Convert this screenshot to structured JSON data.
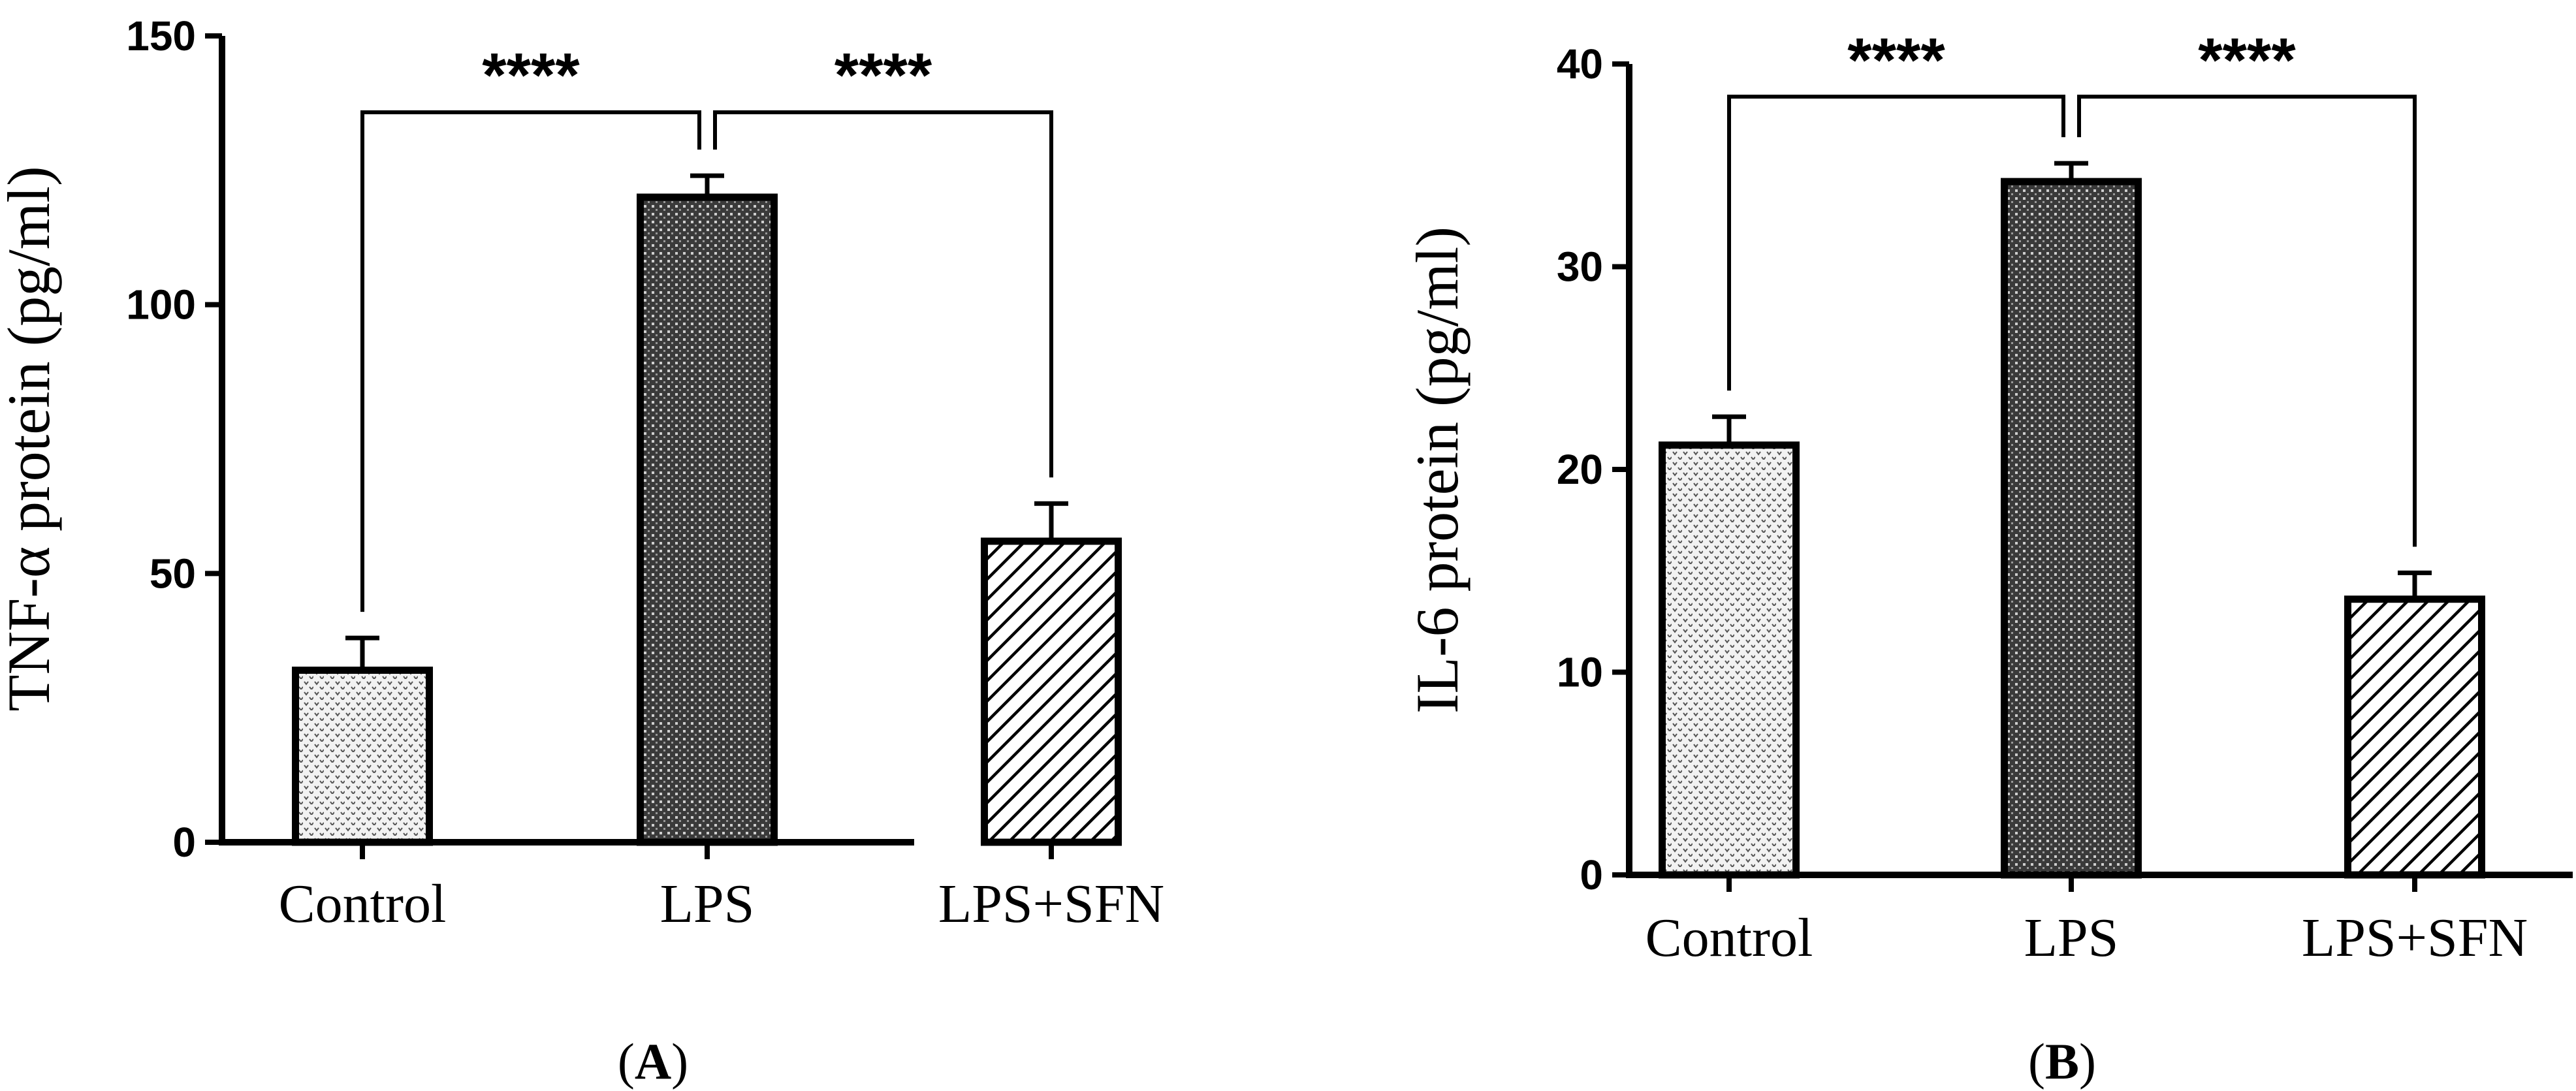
{
  "colors": {
    "ink": "#000000",
    "background": "#ffffff"
  },
  "panels": [
    {
      "label": "A"
    },
    {
      "label": "B"
    }
  ],
  "chart_data": [
    {
      "type": "bar",
      "panel": "A",
      "ylabel": "TNF-α protein (pg/ml)",
      "xlabel": "",
      "ylim": [
        0,
        150
      ],
      "yticks": [
        0,
        50,
        100,
        150
      ],
      "ytick_labels": [
        "0",
        "50",
        "100",
        "150"
      ],
      "categories": [
        "Control",
        "LPS",
        "LPS+SFN"
      ],
      "values": [
        32,
        120,
        56
      ],
      "errors": [
        6,
        4,
        7
      ],
      "patterns": [
        "dots",
        "crosshatch",
        "diagonal-stripes"
      ],
      "significance": [
        {
          "between": [
            "Control",
            "LPS"
          ],
          "text": "****"
        },
        {
          "between": [
            "LPS",
            "LPS+SFN"
          ],
          "text": "****"
        }
      ],
      "grid": false
    },
    {
      "type": "bar",
      "panel": "B",
      "ylabel": "IL-6 protein (pg/ml)",
      "xlabel": "",
      "ylim": [
        0,
        40
      ],
      "yticks": [
        0,
        10,
        20,
        30,
        40
      ],
      "ytick_labels": [
        "0",
        "10",
        "20",
        "30",
        "40"
      ],
      "categories": [
        "Control",
        "LPS",
        "LPS+SFN"
      ],
      "values": [
        21.2,
        34.2,
        13.6
      ],
      "errors": [
        1.4,
        0.9,
        1.3
      ],
      "patterns": [
        "dots",
        "crosshatch",
        "diagonal-stripes"
      ],
      "significance": [
        {
          "between": [
            "Control",
            "LPS"
          ],
          "text": "****"
        },
        {
          "between": [
            "LPS",
            "LPS+SFN"
          ],
          "text": "****"
        }
      ],
      "grid": false
    }
  ]
}
